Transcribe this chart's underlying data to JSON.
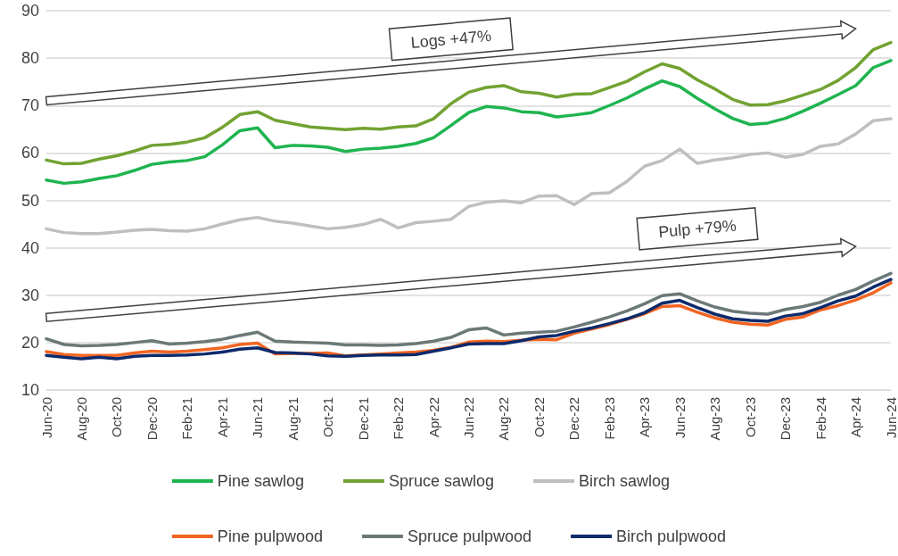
{
  "chart_data": {
    "type": "line",
    "categories": [
      "Jun-20",
      null,
      "Aug-20",
      null,
      "Oct-20",
      null,
      "Dec-20",
      null,
      "Feb-21",
      null,
      "Apr-21",
      null,
      "Jun-21",
      null,
      "Aug-21",
      null,
      "Oct-21",
      null,
      "Dec-21",
      null,
      "Feb-22",
      null,
      "Apr-22",
      null,
      "Jun-22",
      null,
      "Aug-22",
      null,
      "Oct-22",
      null,
      "Dec-22",
      null,
      "Feb-23",
      null,
      "Apr-23",
      null,
      "Jun-23",
      null,
      "Aug-23",
      null,
      "Oct-23",
      null,
      "Dec-23",
      null,
      "Feb-24",
      null,
      "Apr-24",
      null,
      "Jun-24"
    ],
    "series": [
      {
        "name": "Pine sawlog",
        "color": "#1fb450",
        "values": [
          54.3,
          53.6,
          53.9,
          54.6,
          55.2,
          56.3,
          57.6,
          58.1,
          58.4,
          59.2,
          61.7,
          64.7,
          65.3,
          61.1,
          61.6,
          61.5,
          61.2,
          60.3,
          60.8,
          61.0,
          61.4,
          62.0,
          63.2,
          65.8,
          68.5,
          69.8,
          69.5,
          68.7,
          68.5,
          67.6,
          68.0,
          68.5,
          70.0,
          71.6,
          73.5,
          75.2,
          74.0,
          71.5,
          69.3,
          67.3,
          66.0,
          66.3,
          67.3,
          68.8,
          70.5,
          72.3,
          74.2,
          78.0,
          79.5
        ]
      },
      {
        "name": "Spruce sawlog",
        "color": "#72a232",
        "values": [
          58.5,
          57.7,
          57.8,
          58.7,
          59.4,
          60.4,
          61.6,
          61.8,
          62.3,
          63.2,
          65.4,
          68.1,
          68.7,
          66.9,
          66.2,
          65.5,
          65.2,
          64.9,
          65.2,
          65.0,
          65.5,
          65.7,
          67.2,
          70.4,
          72.8,
          73.8,
          74.2,
          72.9,
          72.6,
          71.8,
          72.4,
          72.5,
          73.8,
          75.1,
          77.1,
          78.8,
          77.8,
          75.4,
          73.5,
          71.3,
          70.1,
          70.2,
          71.0,
          72.2,
          73.4,
          75.3,
          78.0,
          81.8,
          83.3
        ]
      },
      {
        "name": "Birch sawlog",
        "color": "#bfbfbf",
        "values": [
          44.0,
          43.2,
          43.0,
          43.0,
          43.3,
          43.7,
          43.9,
          43.6,
          43.5,
          44.0,
          45.0,
          45.9,
          46.4,
          45.6,
          45.2,
          44.6,
          44.0,
          44.3,
          44.9,
          46.0,
          44.2,
          45.3,
          45.6,
          46.0,
          48.7,
          49.6,
          49.9,
          49.5,
          50.9,
          51.0,
          49.1,
          51.4,
          51.6,
          54.0,
          57.2,
          58.4,
          60.8,
          57.8,
          58.5,
          59.0,
          59.7,
          60.0,
          59.1,
          59.7,
          61.4,
          61.9,
          64.0,
          66.8,
          67.2
        ]
      },
      {
        "name": "Pine pulpwood",
        "color": "#f26522",
        "values": [
          18.1,
          17.5,
          17.3,
          17.3,
          17.3,
          17.8,
          18.2,
          18.0,
          18.2,
          18.5,
          18.9,
          19.6,
          19.9,
          17.6,
          17.7,
          17.7,
          17.8,
          17.2,
          17.4,
          17.6,
          17.8,
          18.0,
          18.4,
          19.0,
          20.1,
          20.3,
          20.2,
          20.5,
          20.7,
          20.6,
          22.0,
          22.9,
          23.8,
          24.9,
          26.1,
          27.6,
          27.8,
          26.4,
          25.2,
          24.3,
          23.9,
          23.7,
          24.9,
          25.4,
          26.9,
          27.8,
          29.0,
          30.5,
          32.6
        ]
      },
      {
        "name": "Spruce pulpwood",
        "color": "#6b7878",
        "values": [
          20.8,
          19.6,
          19.3,
          19.4,
          19.6,
          20.0,
          20.4,
          19.7,
          19.9,
          20.2,
          20.7,
          21.5,
          22.2,
          20.3,
          20.1,
          20.0,
          19.9,
          19.5,
          19.5,
          19.4,
          19.5,
          19.8,
          20.3,
          21.1,
          22.7,
          23.1,
          21.6,
          22.0,
          22.2,
          22.4,
          23.3,
          24.3,
          25.4,
          26.7,
          28.2,
          29.9,
          30.3,
          28.8,
          27.5,
          26.6,
          26.2,
          26.0,
          27.0,
          27.6,
          28.5,
          30.0,
          31.2,
          33.0,
          34.6
        ]
      },
      {
        "name": "Birch pulpwood",
        "color": "#0d2a6b",
        "values": [
          17.3,
          16.9,
          16.6,
          16.9,
          16.6,
          17.1,
          17.3,
          17.3,
          17.4,
          17.6,
          18.0,
          18.6,
          18.9,
          17.9,
          17.8,
          17.6,
          17.2,
          17.1,
          17.3,
          17.4,
          17.4,
          17.5,
          18.2,
          18.9,
          19.7,
          19.8,
          19.8,
          20.4,
          21.2,
          21.5,
          22.4,
          23.1,
          24.0,
          25.0,
          26.3,
          28.3,
          28.9,
          27.4,
          26.0,
          25.0,
          24.7,
          24.5,
          25.6,
          26.1,
          27.4,
          28.8,
          29.8,
          31.7,
          33.3
        ]
      }
    ],
    "ylim": [
      10,
      90
    ],
    "yticks": [
      10,
      20,
      30,
      40,
      50,
      60,
      70,
      80,
      90
    ],
    "grid": "y",
    "legend": "bottom",
    "marker": "none",
    "line_style": "solid",
    "annotations": [
      "Logs +47%",
      "Pulp +79%"
    ]
  }
}
